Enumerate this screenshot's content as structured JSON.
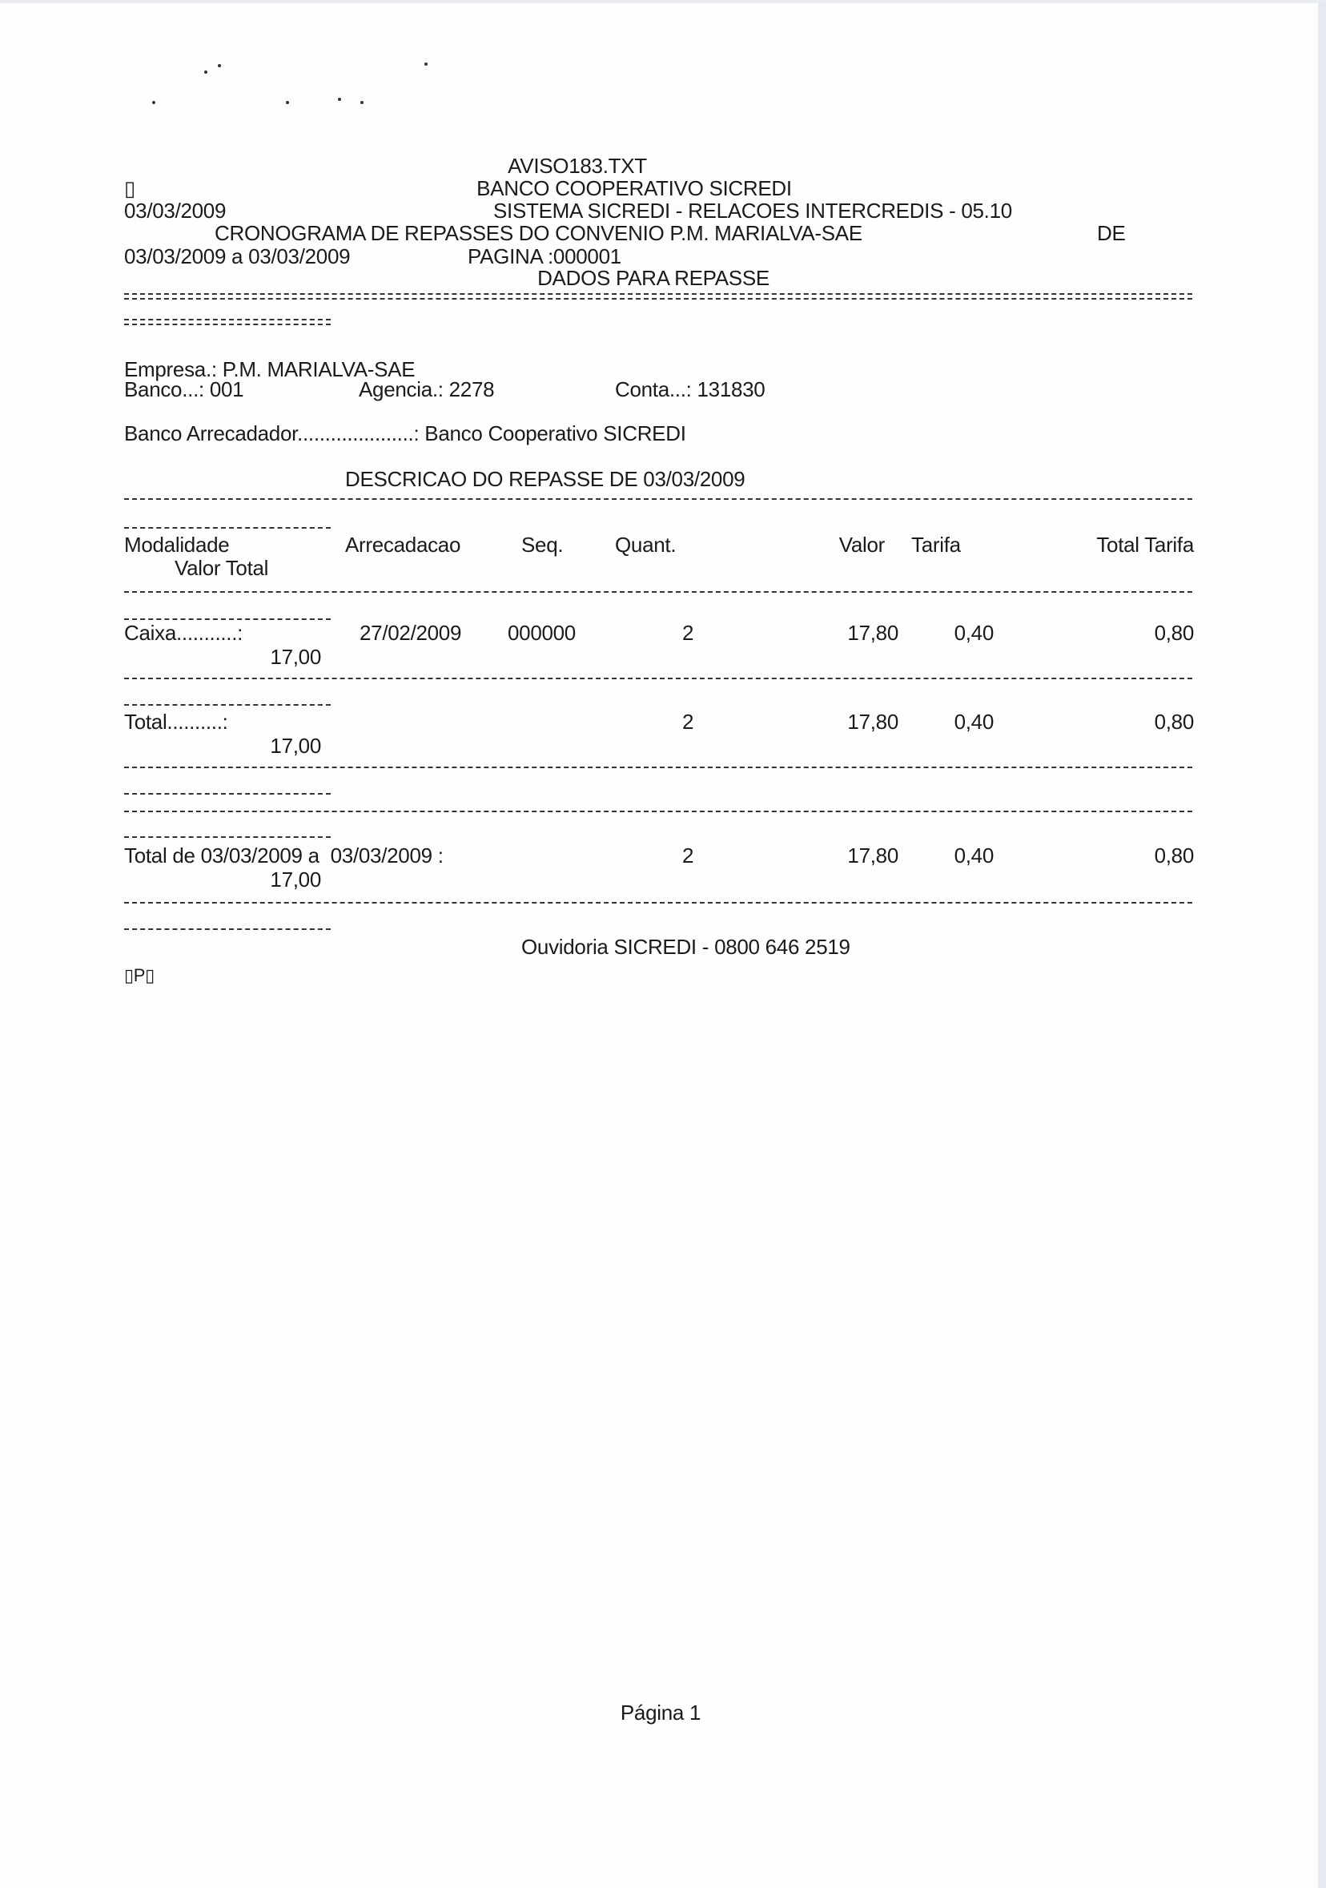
{
  "header": {
    "file_name": "AVISO183.TXT",
    "box_glyph": "▯",
    "bank_name": "BANCO COOPERATIVO SICREDI",
    "report_date": "03/03/2009",
    "system": "SISTEMA SICREDI - RELACOES INTERCREDIS - 05.10",
    "title": "CRONOGRAMA DE REPASSES DO CONVENIO P.M. MARIALVA-SAE",
    "title_suffix": "DE",
    "period": "03/03/2009 a 03/03/2009",
    "page": "PAGINA :000001",
    "section": "DADOS PARA REPASSE"
  },
  "info": {
    "empresa": "Empresa.: P.M. MARIALVA-SAE",
    "banco": "Banco...: 001",
    "agencia": "Agencia.: 2278",
    "conta": "Conta...: 131830",
    "banco_arrecadador": "Banco Arrecadador.....................: Banco Cooperativo SICREDI"
  },
  "table": {
    "title": "DESCRICAO DO REPASSE DE 03/03/2009",
    "columns": [
      "Modalidade",
      "Arrecadacao",
      "Seq.",
      "Quant.",
      "Valor",
      "Tarifa",
      "Total Tarifa",
      "Valor Total"
    ],
    "rows": [
      {
        "label": "Caixa...........:",
        "arrecadacao": "27/02/2009",
        "seq": "000000",
        "quant": "2",
        "valor": "17,80",
        "tarifa": "0,40",
        "total_tarifa": "0,80",
        "valor_total": "17,00"
      },
      {
        "label": "Total..........:",
        "arrecadacao": "",
        "seq": "",
        "quant": "2",
        "valor": "17,80",
        "tarifa": "0,40",
        "total_tarifa": "0,80",
        "valor_total": "17,00"
      },
      {
        "label": "Total de 03/03/2009 a  03/03/2009 :",
        "arrecadacao": "",
        "seq": "",
        "quant": "2",
        "valor": "17,80",
        "tarifa": "0,40",
        "total_tarifa": "0,80",
        "valor_total": "17,00"
      }
    ]
  },
  "footer": {
    "ouvidoria": "Ouvidoria SICREDI - 0800 646 2519",
    "marker": "▯P▯",
    "page_label": "Página 1"
  }
}
